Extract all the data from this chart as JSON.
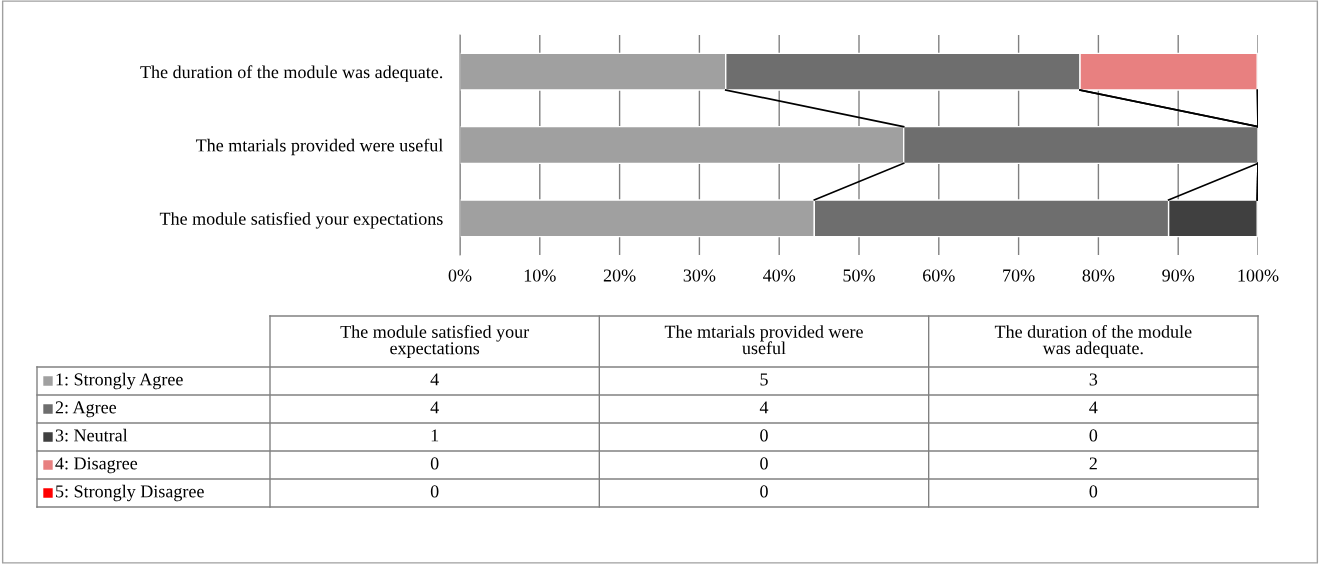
{
  "chart_data": {
    "type": "bar",
    "orientation": "horizontal",
    "stacked": true,
    "categories": [
      "The duration of the module was adequate.",
      "The mtarials provided were useful",
      "The module satisfied your expectations"
    ],
    "series": [
      {
        "name": "1: Strongly Agree",
        "color": "#a0a0a0",
        "values": [
          33.3,
          55.6,
          44.4
        ]
      },
      {
        "name": "2: Agree",
        "color": "#6e6e6e",
        "values": [
          44.4,
          44.4,
          44.4
        ]
      },
      {
        "name": "3: Neutral",
        "color": "#404040",
        "values": [
          0,
          0,
          11.1
        ]
      },
      {
        "name": "4: Disagree",
        "color": "#e88080",
        "values": [
          22.2,
          0,
          0
        ]
      },
      {
        "name": "5: Strongly Disagree",
        "color": "#ff0000",
        "values": [
          0,
          0,
          0
        ]
      }
    ],
    "annotations": [
      "4",
      "5",
      "3",
      "4",
      "4",
      "4",
      "1",
      "0",
      "0",
      "0",
      "0",
      "2",
      "0",
      "0",
      "0"
    ],
    "legend": "bottom left",
    "xlim": [
      0,
      100
    ],
    "xticks": [
      {
        "value": 0,
        "label": "0%"
      },
      {
        "value": 10,
        "label": "10%"
      },
      {
        "value": 20,
        "label": "20%"
      },
      {
        "value": 30,
        "label": "30%"
      },
      {
        "value": 40,
        "label": "40%"
      },
      {
        "value": 50,
        "label": "50%"
      },
      {
        "value": 60,
        "label": "60%"
      },
      {
        "value": 70,
        "label": "70%"
      },
      {
        "value": 80,
        "label": "80%"
      },
      {
        "value": 90,
        "label": "90%"
      },
      {
        "value": 100,
        "label": "100%"
      }
    ],
    "grid": "x"
  }
}
